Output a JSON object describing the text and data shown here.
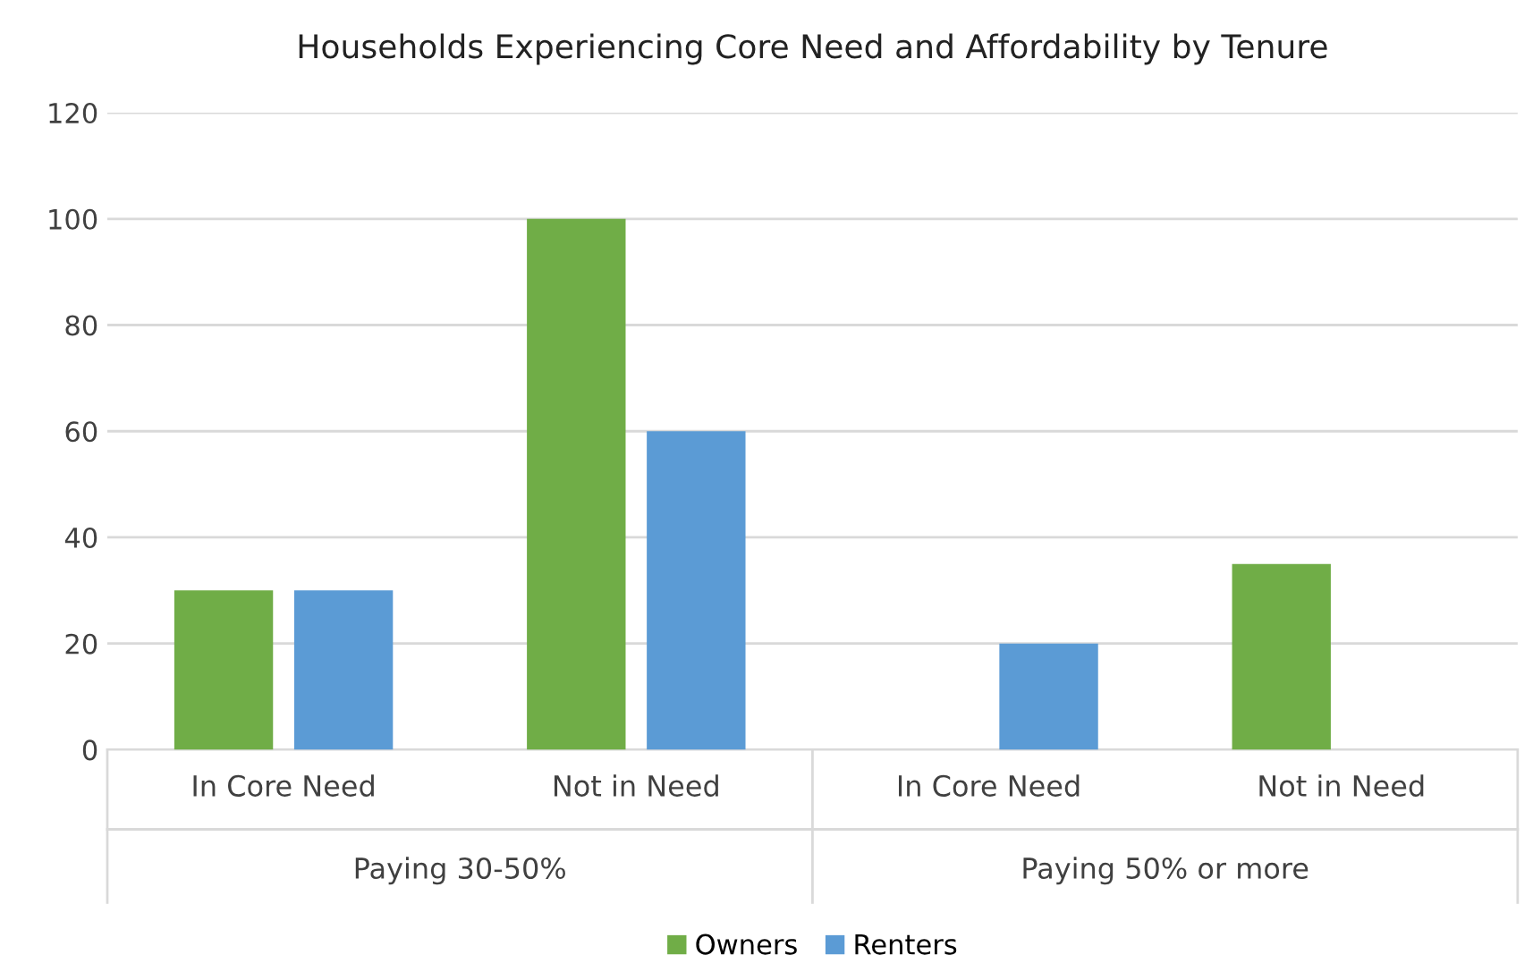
{
  "chart_data": {
    "type": "bar",
    "title": "Households Experiencing Core Need and Affordability by Tenure",
    "categories": [
      "In Core Need",
      "Not in Need",
      "In Core Need",
      "Not in Need"
    ],
    "series": [
      {
        "name": "Owners",
        "color": "#70ad47",
        "values": [
          30,
          100,
          null,
          35
        ]
      },
      {
        "name": "Renters",
        "color": "#5b9bd5",
        "values": [
          30,
          60,
          20,
          null
        ]
      }
    ],
    "ylim": [
      0,
      120
    ],
    "yticks": [
      0,
      20,
      40,
      60,
      80,
      100,
      120
    ],
    "grid": "y",
    "legend": "bottom",
    "annotations": [
      "Paying 30-50%",
      "Paying 50% or more"
    ]
  }
}
